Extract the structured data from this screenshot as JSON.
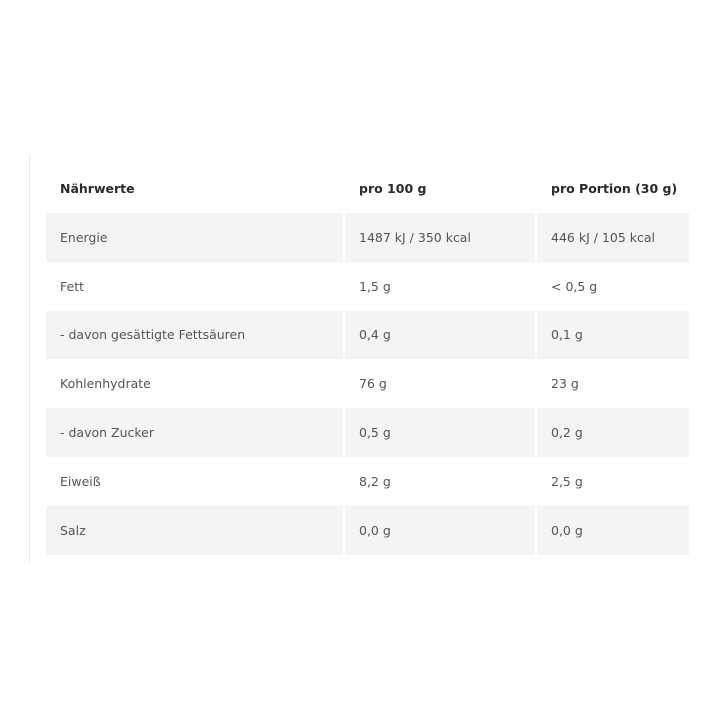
{
  "table": {
    "headers": [
      "Nährwerte",
      "pro 100 g",
      "pro Portion (30 g)"
    ],
    "rows": [
      [
        "Energie",
        "1487 kJ / 350 kcal",
        "446 kJ / 105 kcal"
      ],
      [
        "Fett",
        "1,5 g",
        "< 0,5 g"
      ],
      [
        "- davon gesättigte Fettsäuren",
        "0,4 g",
        "0,1 g"
      ],
      [
        "Kohlenhydrate",
        "76 g",
        "23 g"
      ],
      [
        "- davon Zucker",
        "0,5 g",
        "0,2 g"
      ],
      [
        "Eiweiß",
        "8,2 g",
        "2,5 g"
      ],
      [
        "Salz",
        "0,0 g",
        "0,0 g"
      ]
    ]
  }
}
